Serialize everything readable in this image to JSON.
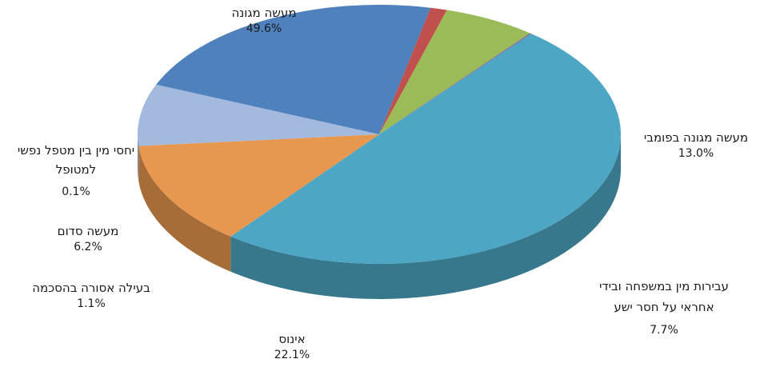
{
  "chart_data": {
    "type": "pie",
    "title": "",
    "legend": "none",
    "slices": [
      {
        "label": "מעשה מגונה",
        "value": 49.6,
        "display": "49.6%",
        "color": "#4DA6C3"
      },
      {
        "label": "מעשה מגונה בפומבי",
        "value": 13.0,
        "display": "13.0%",
        "color": "#E8984E"
      },
      {
        "label": "עבירות מין במשפחה ובידי אחראי על חסר ישע",
        "value": 7.7,
        "display": "7.7%",
        "color": "#A3B9DE"
      },
      {
        "label": "אינוס",
        "value": 22.1,
        "display": "22.1%",
        "color": "#4F81BD"
      },
      {
        "label": "בעילה אסורה בהסכמה",
        "value": 1.1,
        "display": "1.1%",
        "color": "#C0504D"
      },
      {
        "label": "מעשה סדום",
        "value": 6.2,
        "display": "6.2%",
        "color": "#9BBB59"
      },
      {
        "label": "יחסי מין בין מטפל נפשי למטופל",
        "value": 0.1,
        "display": "0.1%",
        "color": "#8064A2"
      }
    ]
  }
}
